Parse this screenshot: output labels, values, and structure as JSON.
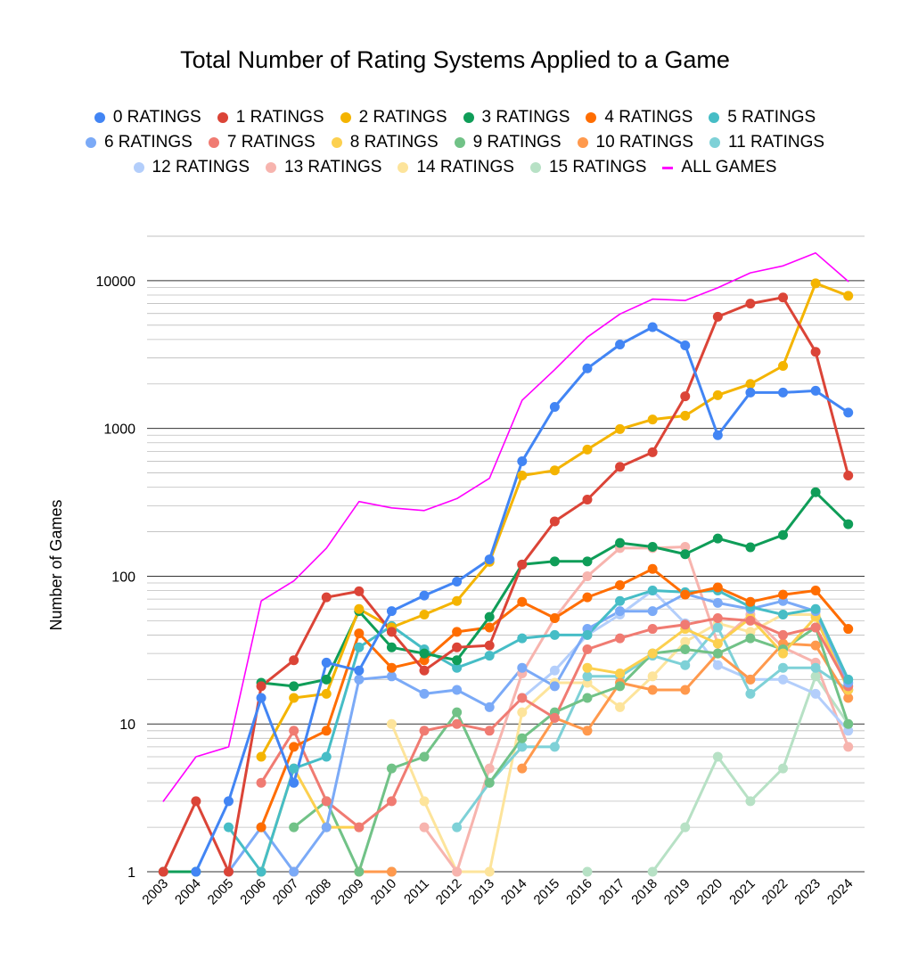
{
  "chart_data": {
    "type": "line",
    "title": "Total Number of Rating Systems Applied to a Game",
    "xlabel": "",
    "ylabel": "Number of Games",
    "y_scale": "log",
    "ylim": [
      1,
      20000
    ],
    "y_ticks": [
      "1",
      "10",
      "100",
      "1000",
      "10000"
    ],
    "legend_position": "top",
    "grid": true,
    "categories": [
      "2003",
      "2004",
      "2005",
      "2006",
      "2007",
      "2008",
      "2009",
      "2010",
      "2011",
      "2012",
      "2013",
      "2014",
      "2015",
      "2016",
      "2017",
      "2018",
      "2019",
      "2020",
      "2021",
      "2022",
      "2023",
      "2024"
    ],
    "series": [
      {
        "name": "0 RATINGS",
        "color": "#4285F4",
        "marker": "dot",
        "values": [
          null,
          1,
          3,
          15,
          4,
          26,
          23,
          58,
          74,
          92,
          130,
          600,
          1400,
          2550,
          3700,
          4850,
          3650,
          900,
          1750,
          1750,
          1800,
          1280
        ]
      },
      {
        "name": "1 RATINGS",
        "color": "#DB4437",
        "marker": "dot",
        "values": [
          1,
          3,
          1,
          18,
          27,
          72,
          79,
          42,
          23,
          33,
          34,
          120,
          235,
          330,
          550,
          690,
          1650,
          5700,
          7000,
          7700,
          3300,
          480
        ]
      },
      {
        "name": "2 RATINGS",
        "color": "#F4B400",
        "marker": "dot",
        "values": [
          null,
          null,
          null,
          6,
          15,
          16,
          60,
          45,
          55,
          68,
          125,
          480,
          520,
          720,
          990,
          1150,
          1220,
          1680,
          2000,
          2650,
          9600,
          7900
        ]
      },
      {
        "name": "3 RATINGS",
        "color": "#0F9D58",
        "marker": "dot",
        "values": [
          1,
          1,
          null,
          19,
          18,
          20,
          58,
          33,
          30,
          27,
          53,
          120,
          126,
          126,
          168,
          158,
          141,
          180,
          157,
          190,
          370,
          225
        ]
      },
      {
        "name": "4 RATINGS",
        "color": "#FF6D01",
        "marker": "dot",
        "values": [
          null,
          null,
          null,
          2,
          7,
          9,
          41,
          24,
          27,
          42,
          45,
          67,
          52,
          72,
          87,
          112,
          75,
          84,
          67,
          75,
          80,
          44
        ]
      },
      {
        "name": "5 RATINGS",
        "color": "#46BDC6",
        "marker": "dot",
        "values": [
          null,
          null,
          2,
          1,
          5,
          6,
          33,
          46,
          32,
          24,
          29,
          38,
          40,
          40,
          68,
          80,
          78,
          80,
          62,
          55,
          60,
          20
        ]
      },
      {
        "name": "6 RATINGS",
        "color": "#7BAAF7",
        "marker": "dot",
        "values": [
          null,
          null,
          1,
          2,
          1,
          2,
          20,
          21,
          16,
          17,
          13,
          24,
          18,
          44,
          58,
          58,
          76,
          66,
          60,
          68,
          58,
          19
        ]
      },
      {
        "name": "7 RATINGS",
        "color": "#F07B72",
        "marker": "dot",
        "values": [
          null,
          null,
          null,
          4,
          9,
          3,
          2,
          3,
          9,
          10,
          9,
          15,
          11,
          32,
          38,
          44,
          47,
          52,
          50,
          40,
          45,
          18
        ]
      },
      {
        "name": "8 RATINGS",
        "color": "#FCD04F",
        "marker": "dot",
        "values": [
          null,
          null,
          null,
          1,
          5,
          2,
          2,
          null,
          null,
          null,
          null,
          null,
          null,
          24,
          22,
          30,
          44,
          35,
          52,
          30,
          53,
          17
        ]
      },
      {
        "name": "9 RATINGS",
        "color": "#71C287",
        "marker": "dot",
        "values": [
          null,
          null,
          null,
          null,
          2,
          3,
          1,
          5,
          6,
          12,
          4,
          8,
          12,
          15,
          18,
          30,
          32,
          30,
          38,
          32,
          45,
          10
        ]
      },
      {
        "name": "10 RATINGS",
        "color": "#FF994D",
        "marker": "dot",
        "values": [
          null,
          null,
          null,
          null,
          1,
          null,
          1,
          1,
          null,
          null,
          null,
          5,
          11,
          9,
          19,
          17,
          17,
          30,
          20,
          35,
          34,
          15
        ]
      },
      {
        "name": "11 RATINGS",
        "color": "#7ED1D7",
        "marker": "dot",
        "values": [
          null,
          null,
          null,
          null,
          null,
          null,
          null,
          1,
          null,
          2,
          4,
          7,
          7,
          21,
          21,
          29,
          25,
          45,
          16,
          24,
          24,
          17
        ]
      },
      {
        "name": "12 RATINGS",
        "color": "#B3CEFB",
        "marker": "dot",
        "values": [
          null,
          null,
          null,
          null,
          null,
          null,
          null,
          null,
          null,
          null,
          null,
          15,
          23,
          40,
          55,
          80,
          48,
          25,
          20,
          20,
          16,
          9
        ]
      },
      {
        "name": "13 RATINGS",
        "color": "#F7B4AE",
        "marker": "dot",
        "values": [
          null,
          null,
          null,
          null,
          null,
          null,
          null,
          null,
          2,
          1,
          5,
          22,
          52,
          100,
          155,
          155,
          158,
          35,
          55,
          33,
          26,
          7
        ]
      },
      {
        "name": "14 RATINGS",
        "color": "#FDE49B",
        "marker": "dot",
        "values": [
          null,
          null,
          null,
          null,
          null,
          null,
          null,
          10,
          3,
          1,
          1,
          12,
          19,
          19,
          13,
          21,
          36,
          48,
          42,
          55,
          55,
          17
        ]
      },
      {
        "name": "15 RATINGS",
        "color": "#B7E1C5",
        "marker": "dot",
        "values": [
          null,
          null,
          null,
          null,
          null,
          null,
          null,
          null,
          null,
          null,
          null,
          null,
          null,
          1,
          null,
          1,
          2,
          6,
          3,
          5,
          21,
          10
        ]
      },
      {
        "name": "ALL GAMES",
        "color": "#FF00FF",
        "marker": "line",
        "values": [
          3,
          6,
          7,
          68,
          93,
          155,
          320,
          290,
          278,
          335,
          460,
          1550,
          2500,
          4150,
          5950,
          7500,
          7350,
          8950,
          11300,
          12600,
          15400,
          9900
        ]
      }
    ]
  }
}
